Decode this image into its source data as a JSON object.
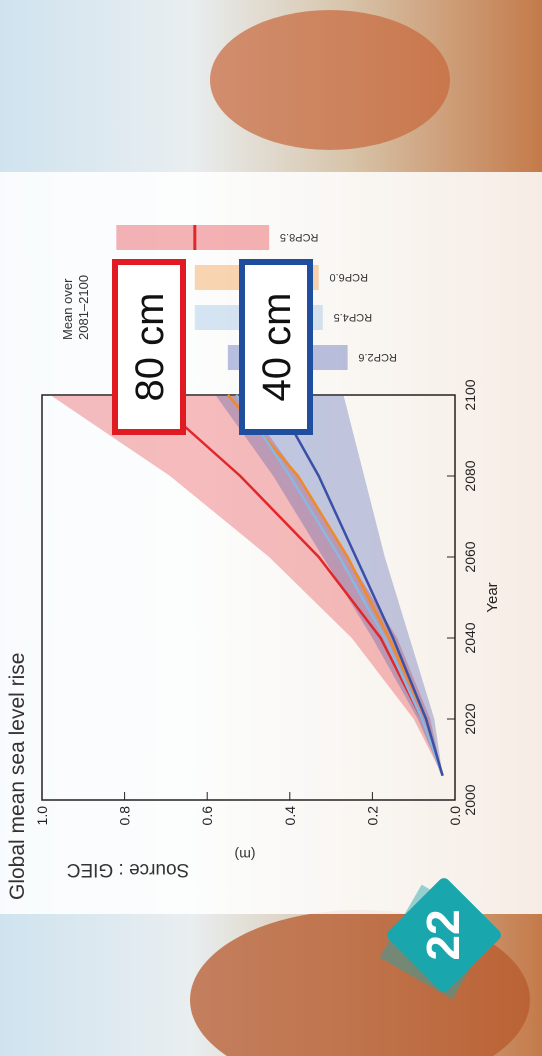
{
  "chart_data": {
    "type": "line",
    "title": "Global mean sea level rise",
    "x_label": "Year",
    "y_label": "(m)",
    "source": "Source : GIEC",
    "legend_title": "Mean over\n2081–2100",
    "badge": "22",
    "annotations": [
      "80 cm",
      "40 cm"
    ],
    "x": [
      2006,
      2020,
      2040,
      2060,
      2080,
      2100
    ],
    "xlim": [
      2000,
      2100
    ],
    "xticks": [
      2000,
      2020,
      2040,
      2060,
      2080,
      2100
    ],
    "ylim": [
      0,
      1
    ],
    "yticks": [
      {
        "value": 0,
        "label": "0.0"
      },
      0.2,
      0.4,
      0.6,
      0.8,
      {
        "value": 1,
        "label": "1.0"
      }
    ],
    "series": [
      {
        "name": "RCP8.5",
        "color": "#e3262a",
        "values": [
          0.03,
          0.08,
          0.18,
          0.33,
          0.52,
          0.74
        ],
        "upper": [
          0.03,
          0.1,
          0.25,
          0.45,
          0.69,
          0.98
        ],
        "lower": [
          0.03,
          0.06,
          0.14,
          0.26,
          0.38,
          0.52
        ],
        "range": [
          0.45,
          0.82
        ],
        "median": 0.63
      },
      {
        "name": "RCP6.0",
        "color": "#f08a24",
        "values": [
          0.03,
          0.07,
          0.16,
          0.26,
          0.38,
          0.55
        ],
        "range": [
          0.33,
          0.63
        ]
      },
      {
        "name": "RCP4.5",
        "color": "#8ab8e0",
        "values": [
          0.03,
          0.08,
          0.17,
          0.28,
          0.4,
          0.53
        ],
        "range": [
          0.32,
          0.63
        ]
      },
      {
        "name": "RCP2.6",
        "color": "#3a50a8",
        "values": [
          0.03,
          0.07,
          0.15,
          0.24,
          0.33,
          0.44
        ],
        "upper": [
          0.03,
          0.09,
          0.2,
          0.32,
          0.44,
          0.58
        ],
        "lower": [
          0.03,
          0.05,
          0.11,
          0.17,
          0.22,
          0.27
        ],
        "range": [
          0.26,
          0.55
        ]
      }
    ],
    "annotation_colors": [
      "#e01b24",
      "#1f4e9e"
    ],
    "badge_color": "#1aa6ad"
  }
}
